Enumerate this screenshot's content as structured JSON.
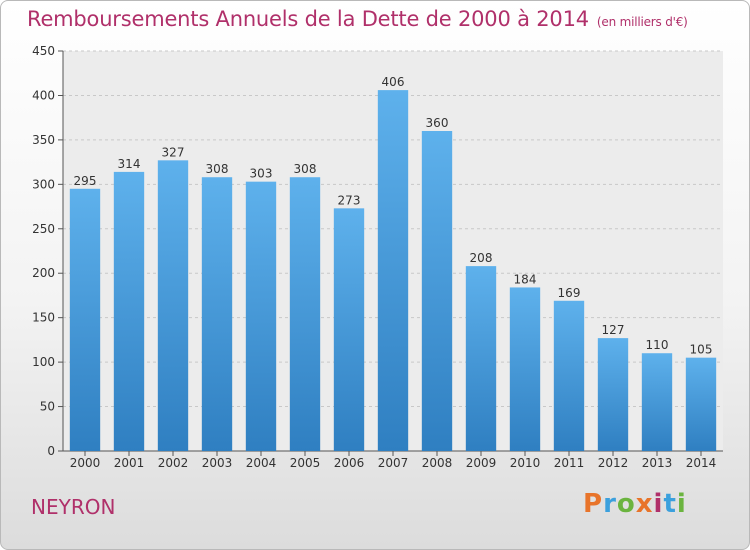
{
  "header": {
    "title": "Remboursements Annuels de la Dette de 2000 à 2014",
    "unit": "(en milliers d'€)"
  },
  "footer": {
    "city": "NEYRON",
    "brand": "Proxiti"
  },
  "chart_data": {
    "type": "bar",
    "title": "Remboursements Annuels de la Dette de 2000 à 2014",
    "subtitle": "(en milliers d'€)",
    "xlabel": "",
    "ylabel": "",
    "categories": [
      "2000",
      "2001",
      "2002",
      "2003",
      "2004",
      "2005",
      "2006",
      "2007",
      "2008",
      "2009",
      "2010",
      "2011",
      "2012",
      "2013",
      "2014"
    ],
    "values": [
      295,
      314,
      327,
      308,
      303,
      308,
      273,
      406,
      360,
      208,
      184,
      169,
      127,
      110,
      105
    ],
    "ylim": [
      0,
      450
    ],
    "yticks": [
      0,
      50,
      100,
      150,
      200,
      250,
      300,
      350,
      400,
      450
    ],
    "grid": true,
    "legend": "none",
    "bar_color_top": "#5eb1ec",
    "bar_color_bottom": "#2f7fc1",
    "text_color": "#b0306a"
  },
  "colors": {
    "brand_letters": [
      "#e8742a",
      "#3ba0dd",
      "#6bb43f",
      "#e8742a",
      "#b0306a",
      "#3ba0dd",
      "#6bb43f"
    ]
  }
}
